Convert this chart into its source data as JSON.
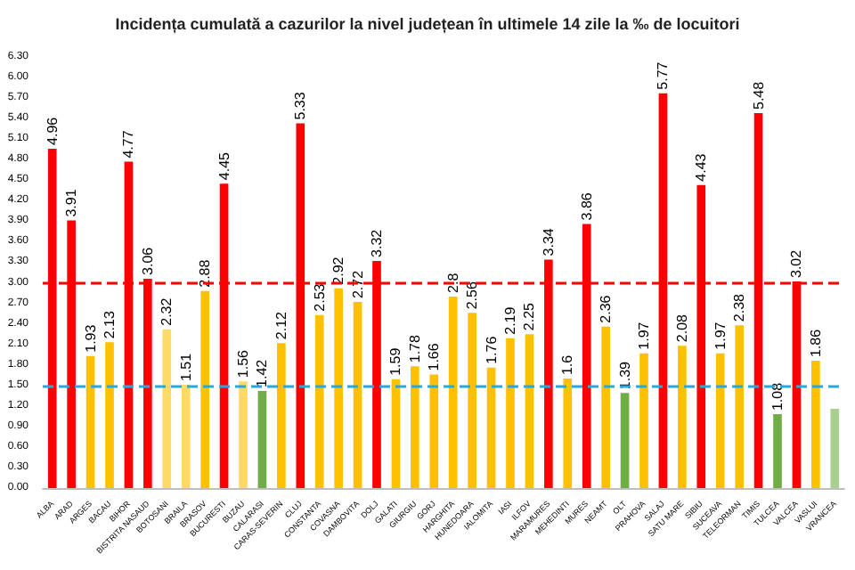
{
  "chart_data": {
    "type": "bar",
    "title": "Incidența cumulată a cazurilor la nivel județean în ultimele 14 zile la ‰ de locuitori",
    "categories": [
      "ALBA",
      "ARAD",
      "ARGES",
      "BACAU",
      "BIHOR",
      "BISTRITA NASAUD",
      "BOTOSANI",
      "BRAILA",
      "BRASOV",
      "BUCURESTI",
      "BUZAU",
      "CALARASI",
      "CARAS-SEVERIN",
      "CLUJ",
      "CONSTANTA",
      "COVASNA",
      "DAMBOVITA",
      "DOLJ",
      "GALATI",
      "GIURGIU",
      "GORJ",
      "HARGHITA",
      "HUNEDOARA",
      "IALOMITA",
      "IASI",
      "ILFOV",
      "MARAMURES",
      "MEHEDINTI",
      "MURES",
      "NEAMT",
      "OLT",
      "PRAHOVA",
      "SALAJ",
      "SATU MARE",
      "SIBIU",
      "SUCEAVA",
      "TELEORMAN",
      "TIMIS",
      "TULCEA",
      "VALCEA",
      "VASLUI",
      "VRANCEA"
    ],
    "values": [
      4.96,
      3.91,
      1.93,
      2.13,
      4.77,
      3.06,
      2.32,
      1.51,
      2.88,
      4.45,
      1.56,
      1.42,
      2.12,
      5.33,
      2.53,
      2.92,
      2.72,
      3.32,
      1.59,
      1.78,
      1.66,
      2.8,
      2.56,
      1.76,
      2.19,
      2.25,
      3.34,
      1.6,
      3.86,
      2.36,
      1.39,
      1.97,
      5.77,
      2.08,
      4.43,
      1.97,
      2.38,
      5.48,
      1.08,
      3.02,
      1.86,
      1.16
    ],
    "value_labels": [
      "4.96",
      "3.91",
      "1.93",
      "2.13",
      "4.77",
      "3.06",
      "2.32",
      "1.51",
      "2.88",
      "4.45",
      "1.56",
      "1.42",
      "2.12",
      "5.33",
      "2.53",
      "2.92",
      "2.72",
      "3.32",
      "1.59",
      "1.78",
      "1.66",
      "2.8",
      "2.56",
      "1.76",
      "2.19",
      "2.25",
      "3.34",
      "1.6",
      "3.86",
      "2.36",
      "1.39",
      "1.97",
      "5.77",
      "2.08",
      "4.43",
      "1.97",
      "2.38",
      "5.48",
      "1.08",
      "3.02",
      "1.86",
      null
    ],
    "colors": [
      "#ff0000",
      "#ff0000",
      "#ffc000",
      "#ffc000",
      "#ff0000",
      "#ff0000",
      "#ffd966",
      "#ffd966",
      "#ffc000",
      "#ff0000",
      "#ffd966",
      "#70ad47",
      "#ffc000",
      "#ff0000",
      "#ffc000",
      "#ffc000",
      "#ffc000",
      "#ff0000",
      "#ffc000",
      "#ffc000",
      "#ffc000",
      "#ffc000",
      "#ffc000",
      "#ffc000",
      "#ffc000",
      "#ffc000",
      "#ff0000",
      "#ffc000",
      "#ff0000",
      "#ffc000",
      "#70ad47",
      "#ffc000",
      "#ff0000",
      "#ffc000",
      "#ff0000",
      "#ffc000",
      "#ffc000",
      "#ff0000",
      "#70ad47",
      "#ff0000",
      "#ffc000",
      "#a9d08e"
    ],
    "ylim": [
      0,
      6.3
    ],
    "yticks": [
      {
        "value": 0,
        "label": "0.00"
      },
      {
        "value": 0.3,
        "label": "0.30"
      },
      {
        "value": 0.6,
        "label": "0.60"
      },
      {
        "value": 0.9,
        "label": "0.90"
      },
      {
        "value": 1.2,
        "label": "1.20"
      },
      {
        "value": 1.5,
        "label": "1.50"
      },
      {
        "value": 1.8,
        "label": "1.80"
      },
      {
        "value": 2.1,
        "label": "2.10"
      },
      {
        "value": 2.4,
        "label": "2.40"
      },
      {
        "value": 2.7,
        "label": "2.70"
      },
      {
        "value": 3,
        "label": "3.00"
      },
      {
        "value": 3.3,
        "label": "3.30"
      },
      {
        "value": 3.6,
        "label": "3.60"
      },
      {
        "value": 3.9,
        "label": "3.90"
      },
      {
        "value": 4.2,
        "label": "4.20"
      },
      {
        "value": 4.5,
        "label": "4.50"
      },
      {
        "value": 4.8,
        "label": "4.80"
      },
      {
        "value": 5.1,
        "label": "5.10"
      },
      {
        "value": 5.4,
        "label": "5.40"
      },
      {
        "value": 5.7,
        "label": "5.70"
      },
      {
        "value": 6,
        "label": "6.00"
      },
      {
        "value": 6.3,
        "label": "6.30"
      }
    ],
    "ref_lines": [
      {
        "axis": "y",
        "value": 3,
        "color": "#ff0000",
        "line_style": "dashed"
      },
      {
        "axis": "y",
        "value": 1.5,
        "color": "#29a8e0",
        "line_style": "dashed"
      }
    ],
    "grid": false
  }
}
